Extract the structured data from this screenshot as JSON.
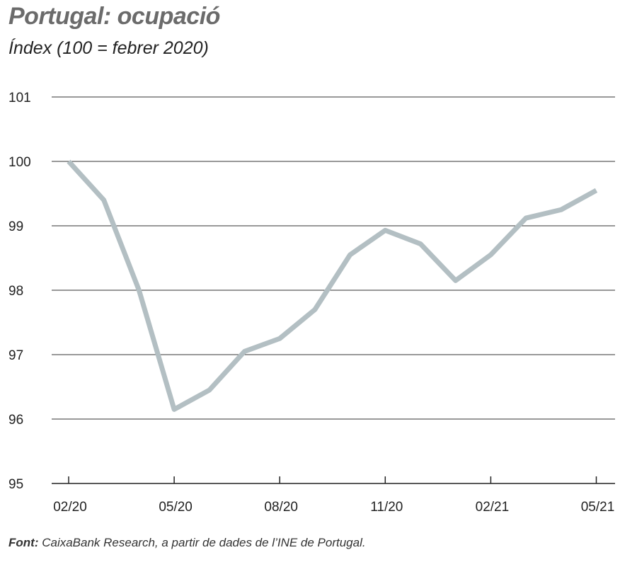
{
  "chart_data": {
    "type": "line",
    "title": "Portugal: ocupació",
    "subtitle": "Índex (100 = febrer 2020)",
    "x": [
      "02/20",
      "03/20",
      "04/20",
      "05/20",
      "06/20",
      "07/20",
      "08/20",
      "09/20",
      "10/20",
      "11/20",
      "12/20",
      "01/21",
      "02/21",
      "03/21",
      "04/21",
      "05/21"
    ],
    "x_tick_labels": [
      "02/20",
      "05/20",
      "08/20",
      "11/20",
      "02/21",
      "05/21"
    ],
    "series": [
      {
        "values": [
          100.0,
          99.4,
          98.0,
          96.15,
          96.45,
          97.05,
          97.25,
          97.7,
          98.55,
          98.93,
          98.72,
          98.15,
          98.55,
          99.12,
          99.25,
          99.55
        ]
      }
    ],
    "ylim": [
      95,
      101
    ],
    "y_ticks": [
      "95",
      "96",
      "97",
      "98",
      "99",
      "100",
      "101"
    ],
    "grid": true,
    "line_color": "#b3bfc3",
    "source_label": "Font:",
    "source_text": "CaixaBank Research, a partir de dades de l’INE de Portugal."
  }
}
